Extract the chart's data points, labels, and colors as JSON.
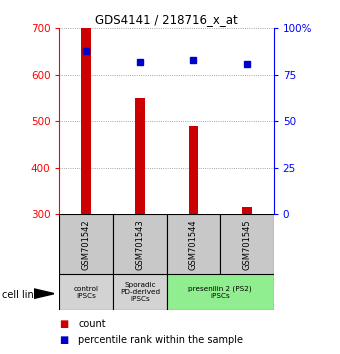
{
  "title": "GDS4141 / 218716_x_at",
  "samples": [
    "GSM701542",
    "GSM701543",
    "GSM701544",
    "GSM701545"
  ],
  "counts": [
    700,
    550,
    490,
    316
  ],
  "percentile_ranks": [
    88,
    82,
    83,
    81
  ],
  "count_baseline": 300,
  "ylim_left": [
    300,
    700
  ],
  "ylim_right": [
    0,
    100
  ],
  "left_ticks": [
    300,
    400,
    500,
    600,
    700
  ],
  "right_ticks": [
    0,
    25,
    50,
    75,
    100
  ],
  "groups": [
    {
      "label": "control\nIPSCs",
      "color": "#d3d3d3",
      "span": [
        0,
        1
      ]
    },
    {
      "label": "Sporadic\nPD-derived\niPSCs",
      "color": "#d3d3d3",
      "span": [
        1,
        2
      ]
    },
    {
      "label": "presenilin 2 (PS2)\niPSCs",
      "color": "#90ee90",
      "span": [
        2,
        4
      ]
    }
  ],
  "bar_color": "#cc0000",
  "dot_color": "#0000cc",
  "bar_width": 0.18,
  "grid_color": "#888888",
  "sample_box_color": "#c8c8c8",
  "legend_count_color": "#cc0000",
  "legend_pct_color": "#0000cc"
}
